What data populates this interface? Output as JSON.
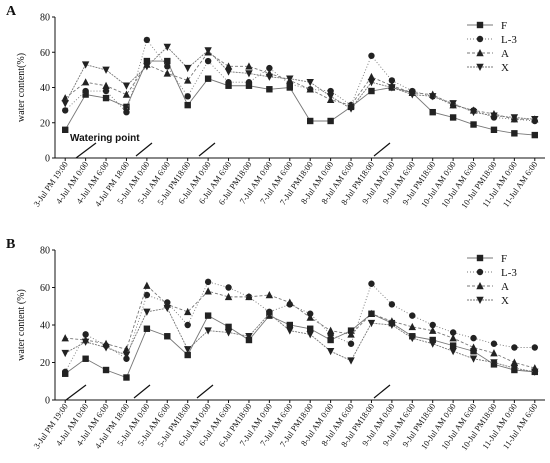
{
  "chart_data": [
    {
      "type": "line",
      "panel": "A",
      "ylabel": "water content(%)",
      "annotation": "Watering point",
      "categories": [
        "3-Jul PM 19:00",
        "4-Jul AM 0:00",
        "4-Jul AM 6:00",
        "4-Jul PM 18:00",
        "5-Jul AM 0:00",
        "5-Jul AM 6:00",
        "5-Jul PM18:00",
        "6-Jul AM 0:00",
        "6-Jul AM 6:00",
        "6-Jul PM18:00",
        "7-Jul AM 0:00",
        "7-Jul AM 6:00",
        "7-Jul PM18:00",
        "8-Jul AM 0:00",
        "8-Jul AM 6:00",
        "8-Jul PM18:00",
        "9-Jul AM 0:00",
        "9-Jul AM 6:00",
        "9-Jul PM18:00",
        "10-Jul AM 0:00",
        "10-Jul AM 6:00",
        "10-Jul PM18:00",
        "11-Jul AM 0:00",
        "11-Jul AM 6:00"
      ],
      "ylim": [
        0,
        80
      ],
      "yticks": [
        0,
        20,
        40,
        60,
        80
      ],
      "legend": "upper right",
      "series": [
        {
          "name": "F",
          "marker": "square",
          "color": "#222",
          "values": [
            16,
            36,
            34,
            29,
            55,
            55,
            30,
            45,
            41,
            41,
            39,
            40,
            21,
            21,
            29,
            38,
            40,
            37,
            26,
            23,
            19,
            16,
            14,
            13
          ]
        },
        {
          "name": "L-3",
          "marker": "circle",
          "color": "#222",
          "values": [
            27,
            38,
            38,
            26,
            67,
            52,
            35,
            55,
            43,
            43,
            51,
            42,
            39,
            38,
            30,
            58,
            44,
            38,
            35,
            30,
            27,
            23,
            22,
            21
          ]
        },
        {
          "name": "A",
          "marker": "triangle-up",
          "color": "#222",
          "values": [
            34,
            43,
            41,
            36,
            53,
            48,
            44,
            60,
            52,
            52,
            48,
            44,
            39,
            33,
            30,
            46,
            41,
            37,
            36,
            30,
            27,
            25,
            22,
            22
          ]
        },
        {
          "name": "X",
          "marker": "triangle-down",
          "color": "#222",
          "values": [
            31,
            53,
            50,
            41,
            52,
            63,
            51,
            61,
            49,
            48,
            46,
            45,
            43,
            35,
            28,
            43,
            40,
            36,
            35,
            31,
            26,
            24,
            23,
            22
          ]
        }
      ]
    },
    {
      "type": "line",
      "panel": "B",
      "ylabel": "water content (%)",
      "categories": [
        "3-Jul PM 19:00",
        "4-Jul AM 0:00",
        "4-Jul AM 6:00",
        "4-Jul PM 18:00",
        "5-Jul AM 0:00",
        "5-Jul AM 6:00",
        "5-Jul PM18:00",
        "6-Jul AM 0:00",
        "6-Jul AM 6:00",
        "6-Jul PM18:00",
        "7-Jul AM 0:00",
        "7-Jul AM 6:00",
        "7-Jul PM18:00",
        "8-Jul AM 0:00",
        "8-Jul AM 6:00",
        "8-Jul PM18:00",
        "9-Jul AM 0:00",
        "9-Jul AM 6:00",
        "9-Jul PM18:00",
        "10-Jul AM 0:00",
        "10-Jul AM 6:00",
        "10-Jul PM18:00",
        "11-Jul AM 0:00",
        "11-Jul AM 6:00"
      ],
      "ylim": [
        0,
        80
      ],
      "yticks": [
        0,
        20,
        40,
        60,
        80
      ],
      "legend": "upper right",
      "series": [
        {
          "name": "F",
          "marker": "square",
          "color": "#222",
          "values": [
            14,
            22,
            16,
            12,
            38,
            34,
            24,
            45,
            39,
            32,
            45,
            40,
            38,
            32,
            37,
            46,
            41,
            34,
            32,
            29,
            26,
            19,
            16,
            15
          ]
        },
        {
          "name": "L-3",
          "marker": "circle",
          "color": "#222",
          "values": [
            15,
            35,
            29,
            22,
            56,
            52,
            40,
            63,
            60,
            55,
            47,
            51,
            46,
            35,
            30,
            62,
            51,
            45,
            40,
            36,
            33,
            30,
            28,
            28
          ]
        },
        {
          "name": "A",
          "marker": "triangle-up",
          "color": "#222",
          "values": [
            33,
            32,
            30,
            27,
            61,
            51,
            47,
            58,
            55,
            55,
            56,
            52,
            44,
            37,
            35,
            46,
            42,
            39,
            37,
            33,
            28,
            25,
            20,
            17
          ]
        },
        {
          "name": "X",
          "marker": "triangle-down",
          "color": "#222",
          "values": [
            25,
            31,
            28,
            24,
            47,
            49,
            27,
            37,
            36,
            34,
            46,
            37,
            35,
            26,
            21,
            41,
            40,
            33,
            30,
            26,
            22,
            20,
            17,
            15
          ]
        }
      ]
    }
  ]
}
